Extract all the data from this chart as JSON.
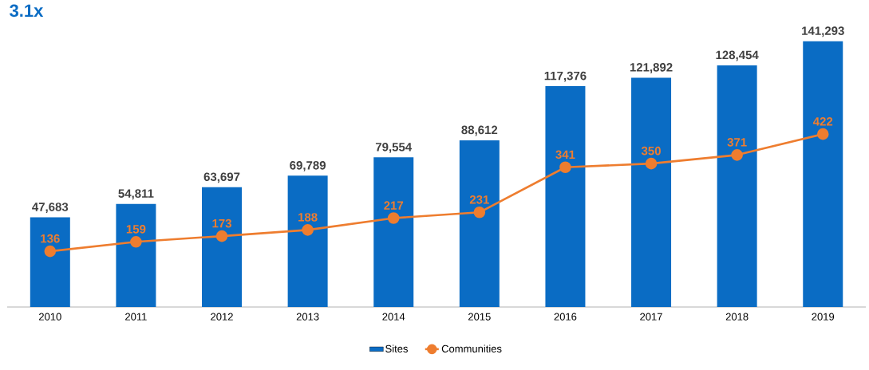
{
  "chart_data": {
    "type": "bar",
    "categories": [
      "2010",
      "2011",
      "2012",
      "2013",
      "2014",
      "2015",
      "2016",
      "2017",
      "2018",
      "2019"
    ],
    "series": [
      {
        "name": "Sites",
        "color": "#0a6cc4",
        "values": [
          47683,
          54811,
          63697,
          69789,
          79554,
          88612,
          117376,
          121892,
          128454,
          141293
        ],
        "value_labels": [
          "47,683",
          "54,811",
          "63,697",
          "69,789",
          "79,554",
          "88,612",
          "117,376",
          "121,892",
          "128,454",
          "141,293"
        ]
      },
      {
        "name": "Communities",
        "type": "line",
        "axis": "y2",
        "marker": "circle",
        "color": "#ee7d2f",
        "values": [
          136,
          159,
          173,
          188,
          217,
          231,
          341,
          350,
          371,
          422
        ],
        "value_labels": [
          "136",
          "159",
          "173",
          "188",
          "217",
          "231",
          "341",
          "350",
          "371",
          "422"
        ]
      }
    ],
    "tick_labels": "x",
    "legend": "bottom",
    "annotations": [
      "3.1x"
    ]
  }
}
